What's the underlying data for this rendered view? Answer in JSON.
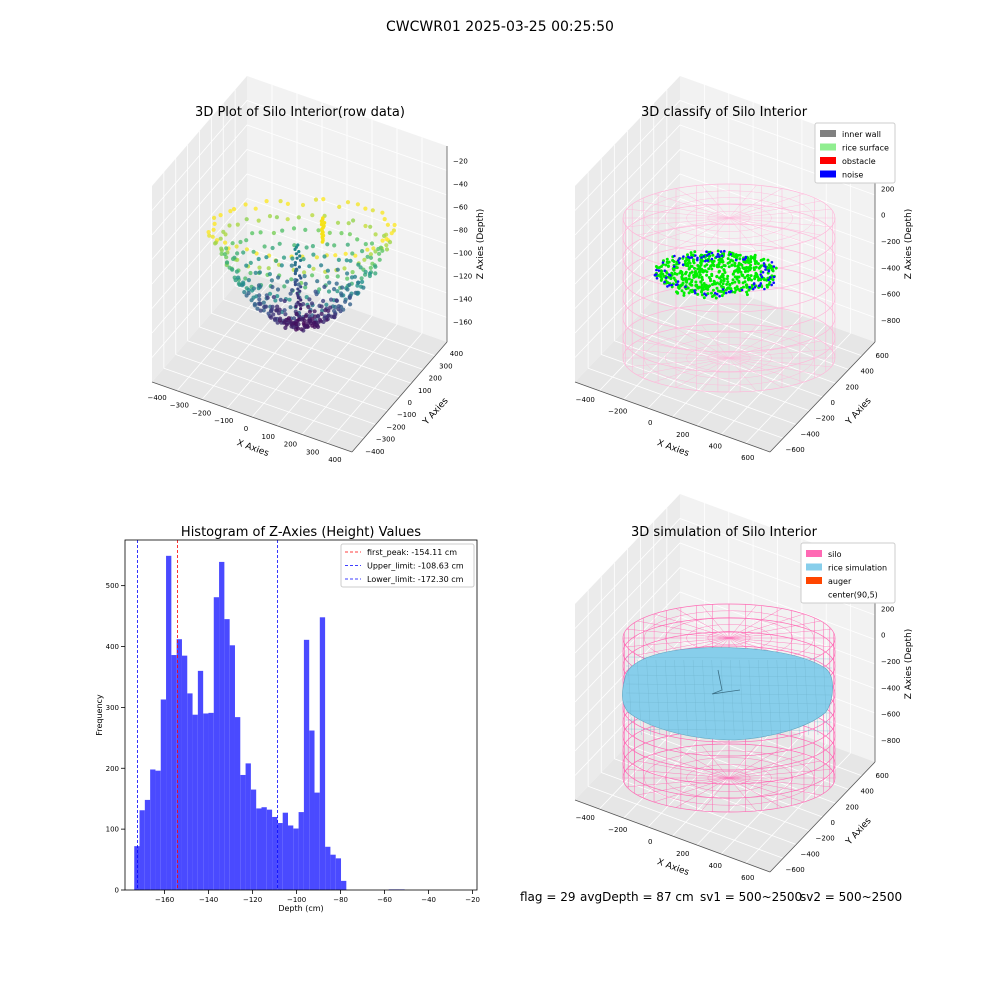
{
  "figure": {
    "suptitle": "CWCWR01 2025-03-25 00:25:50",
    "footer": {
      "flag": "flag = 29",
      "avg_depth": "avgDepth = 87 cm",
      "sv1": "sv1 = 500~2500",
      "sv2": "sv2 = 500~2500"
    }
  },
  "chart_data": [
    {
      "type": "scatter",
      "panel": "top-left",
      "title": "3D Plot of Silo Interior(row data)",
      "xlabel": "X Axies",
      "ylabel": "Y Axies",
      "zlabel": "Z Axies (Depth)",
      "xticks": [
        "−400",
        "−300",
        "−200",
        "−100",
        "0",
        "100",
        "200",
        "300",
        "400"
      ],
      "yticks": [
        "−400",
        "−300",
        "−200",
        "−100",
        "0",
        "100",
        "200",
        "300",
        "400"
      ],
      "zticks": [
        "−20",
        "−40",
        "−60",
        "−80",
        "−100",
        "−120",
        "−140",
        "−160"
      ],
      "xlim": [
        -400,
        400
      ],
      "ylim": [
        -400,
        400
      ],
      "zlim": [
        -175,
        -15
      ],
      "colormap": "viridis",
      "grid": true
    },
    {
      "type": "scatter",
      "panel": "top-right",
      "title": "3D classify of Silo Interior",
      "xlabel": "X Axies",
      "ylabel": "Y Axies",
      "zlabel": "Z Axies (Depth)",
      "xticks": [
        "−400",
        "−200",
        "0",
        "200",
        "400",
        "600"
      ],
      "yticks": [
        "−600",
        "−400",
        "−200",
        "0",
        "200",
        "400",
        "600"
      ],
      "zticks": [
        "400",
        "200",
        "0",
        "−200",
        "−400",
        "−600",
        "−800"
      ],
      "legend_position": "top-right",
      "legend": [
        {
          "label": "inner wall",
          "color": "#808080"
        },
        {
          "label": "rice surface",
          "color": "#90ee90"
        },
        {
          "label": "obstacle",
          "color": "#ff0000"
        },
        {
          "label": "noise",
          "color": "#0000ff"
        }
      ],
      "colors": {
        "wireframe": "#ffb6d9",
        "surface_points": "#00ff00",
        "noise_points": "#0000ff"
      },
      "grid": true
    },
    {
      "type": "bar",
      "panel": "bottom-left",
      "title": "Histogram of Z-Axies (Height) Values",
      "xlabel": "Depth (cm)",
      "ylabel": "Frequency",
      "bin_width": 2.41,
      "bins_start": -173.8,
      "values": [
        72,
        131,
        148,
        198,
        196,
        313,
        549,
        386,
        412,
        385,
        323,
        288,
        360,
        290,
        291,
        481,
        539,
        445,
        402,
        284,
        189,
        208,
        165,
        134,
        136,
        132,
        120,
        110,
        127,
        106,
        101,
        128,
        411,
        262,
        160,
        448,
        71,
        58,
        52,
        15,
        0,
        0,
        0,
        0,
        0,
        0,
        0,
        0,
        1,
        1,
        1
      ],
      "xlim": [
        -178,
        -18
      ],
      "ylim": [
        0,
        575
      ],
      "xticks": [
        -160,
        -140,
        -120,
        -100,
        -80,
        -60,
        -40,
        -20
      ],
      "yticks": [
        0,
        100,
        200,
        300,
        400,
        500
      ],
      "bar_color": "#4a4aff",
      "vlines": [
        {
          "label": "first_peak: -154.11 cm",
          "x": -154.11,
          "color": "#ff0000"
        },
        {
          "label": "Upper_limit: -108.63 cm",
          "x": -108.63,
          "color": "#0000ff"
        },
        {
          "label": "Lower_limit: -172.30 cm",
          "x": -172.3,
          "color": "#0000ff"
        }
      ],
      "legend_position": "top-right",
      "grid": false
    },
    {
      "type": "area",
      "panel": "bottom-right",
      "title": "3D simulation of Silo Interior",
      "xlabel": "X Axies",
      "ylabel": "Y Axies",
      "zlabel": "Z Axies (Depth)",
      "xticks": [
        "−400",
        "−200",
        "0",
        "200",
        "400",
        "600"
      ],
      "yticks": [
        "−600",
        "−400",
        "−200",
        "0",
        "200",
        "400",
        "600"
      ],
      "zticks": [
        "400",
        "200",
        "0",
        "−200",
        "−400",
        "−600",
        "−800"
      ],
      "legend_position": "top-right",
      "legend": [
        {
          "label": "silo",
          "color": "#ff69b4"
        },
        {
          "label": "rice simulation",
          "color": "#87ceeb"
        },
        {
          "label": "auger",
          "color": "#ff4500"
        },
        {
          "label": "center(90,5)",
          "color": ""
        }
      ],
      "grid": true
    }
  ]
}
